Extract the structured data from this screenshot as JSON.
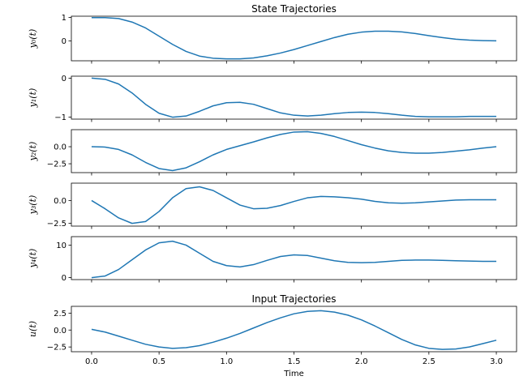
{
  "colors": {
    "line": "#1f77b4",
    "frame": "#000000",
    "background": "#ffffff"
  },
  "chart_data": [
    {
      "type": "line",
      "title": "State Trajectories",
      "ylabel": "y₀(t)",
      "xlim": [
        -0.15,
        3.15
      ],
      "ylim": [
        -0.85,
        1.05
      ],
      "yticks": [
        {
          "value": 1,
          "label": "1"
        },
        {
          "value": 0,
          "label": "0"
        }
      ],
      "xticks": [
        0,
        0.5,
        1,
        1.5,
        2,
        2.5,
        3
      ],
      "show_xticklabels": false,
      "series": [
        {
          "x": [
            0,
            0.1,
            0.2,
            0.3,
            0.4,
            0.5,
            0.6,
            0.7,
            0.8,
            0.9,
            1.0,
            1.1,
            1.2,
            1.3,
            1.4,
            1.5,
            1.6,
            1.7,
            1.8,
            1.9,
            2.0,
            2.1,
            2.2,
            2.3,
            2.4,
            2.5,
            2.6,
            2.7,
            2.8,
            2.9,
            3.0
          ],
          "y": [
            0.99,
            0.99,
            0.95,
            0.8,
            0.55,
            0.2,
            -0.15,
            -0.45,
            -0.65,
            -0.74,
            -0.77,
            -0.77,
            -0.73,
            -0.64,
            -0.52,
            -0.37,
            -0.2,
            -0.03,
            0.14,
            0.28,
            0.37,
            0.41,
            0.41,
            0.38,
            0.31,
            0.22,
            0.14,
            0.07,
            0.03,
            0.01,
            0.0
          ]
        }
      ]
    },
    {
      "type": "line",
      "ylabel": "y₁(t)",
      "xlim": [
        -0.15,
        3.15
      ],
      "ylim": [
        -1.05,
        0.05
      ],
      "yticks": [
        {
          "value": 0,
          "label": "0"
        },
        {
          "value": -1,
          "label": "−1"
        }
      ],
      "xticks": [
        0,
        0.5,
        1,
        1.5,
        2,
        2.5,
        3
      ],
      "show_xticklabels": false,
      "series": [
        {
          "x": [
            0,
            0.1,
            0.2,
            0.3,
            0.4,
            0.5,
            0.6,
            0.7,
            0.8,
            0.9,
            1.0,
            1.1,
            1.2,
            1.3,
            1.4,
            1.5,
            1.6,
            1.7,
            1.8,
            1.9,
            2.0,
            2.1,
            2.2,
            2.3,
            2.4,
            2.5,
            2.6,
            2.7,
            2.8,
            2.9,
            3.0
          ],
          "y": [
            0,
            -0.03,
            -0.15,
            -0.38,
            -0.67,
            -0.9,
            -1.0,
            -0.97,
            -0.85,
            -0.71,
            -0.63,
            -0.62,
            -0.67,
            -0.78,
            -0.89,
            -0.95,
            -0.97,
            -0.95,
            -0.91,
            -0.88,
            -0.87,
            -0.88,
            -0.91,
            -0.95,
            -0.98,
            -0.99,
            -0.99,
            -0.99,
            -0.98,
            -0.98,
            -0.98
          ]
        }
      ]
    },
    {
      "type": "line",
      "ylabel": "y₂(t)",
      "xlim": [
        -0.15,
        3.15
      ],
      "ylim": [
        -3.8,
        2.5
      ],
      "yticks": [
        {
          "value": 0,
          "label": "0.0"
        },
        {
          "value": -2.5,
          "label": "−2.5"
        }
      ],
      "xticks": [
        0,
        0.5,
        1,
        1.5,
        2,
        2.5,
        3
      ],
      "show_xticklabels": false,
      "series": [
        {
          "x": [
            0,
            0.1,
            0.2,
            0.3,
            0.4,
            0.5,
            0.6,
            0.7,
            0.8,
            0.9,
            1.0,
            1.1,
            1.2,
            1.3,
            1.4,
            1.5,
            1.6,
            1.7,
            1.8,
            1.9,
            2.0,
            2.1,
            2.2,
            2.3,
            2.4,
            2.5,
            2.6,
            2.7,
            2.8,
            2.9,
            3.0
          ],
          "y": [
            0,
            -0.05,
            -0.4,
            -1.2,
            -2.3,
            -3.2,
            -3.5,
            -3.1,
            -2.2,
            -1.2,
            -0.4,
            0.15,
            0.7,
            1.3,
            1.8,
            2.15,
            2.2,
            1.95,
            1.5,
            0.9,
            0.3,
            -0.2,
            -0.6,
            -0.85,
            -0.95,
            -0.95,
            -0.85,
            -0.65,
            -0.45,
            -0.2,
            0.0
          ]
        }
      ]
    },
    {
      "type": "line",
      "ylabel": "y₃(t)",
      "xlim": [
        -0.15,
        3.15
      ],
      "ylim": [
        -2.8,
        1.9
      ],
      "yticks": [
        {
          "value": 0,
          "label": "0.0"
        },
        {
          "value": -2.5,
          "label": "−2.5"
        }
      ],
      "xticks": [
        0,
        0.5,
        1,
        1.5,
        2,
        2.5,
        3
      ],
      "show_xticklabels": false,
      "series": [
        {
          "x": [
            0,
            0.1,
            0.2,
            0.3,
            0.4,
            0.5,
            0.6,
            0.7,
            0.8,
            0.9,
            1.0,
            1.1,
            1.2,
            1.3,
            1.4,
            1.5,
            1.6,
            1.7,
            1.8,
            1.9,
            2.0,
            2.1,
            2.2,
            2.3,
            2.4,
            2.5,
            2.6,
            2.7,
            2.8,
            2.9,
            3.0
          ],
          "y": [
            0,
            -0.9,
            -1.9,
            -2.5,
            -2.3,
            -1.2,
            0.3,
            1.3,
            1.5,
            1.1,
            0.3,
            -0.5,
            -0.9,
            -0.85,
            -0.55,
            -0.1,
            0.3,
            0.45,
            0.4,
            0.3,
            0.15,
            -0.1,
            -0.25,
            -0.3,
            -0.25,
            -0.15,
            -0.05,
            0.05,
            0.08,
            0.08,
            0.08
          ]
        }
      ]
    },
    {
      "type": "line",
      "ylabel": "y₄(t)",
      "xlim": [
        -0.15,
        3.15
      ],
      "ylim": [
        -0.6,
        12.6
      ],
      "yticks": [
        {
          "value": 10,
          "label": "10"
        },
        {
          "value": 0,
          "label": "0"
        }
      ],
      "xticks": [
        0,
        0.5,
        1,
        1.5,
        2,
        2.5,
        3
      ],
      "show_xticklabels": false,
      "series": [
        {
          "x": [
            0,
            0.1,
            0.2,
            0.3,
            0.4,
            0.5,
            0.6,
            0.7,
            0.8,
            0.9,
            1.0,
            1.1,
            1.2,
            1.3,
            1.4,
            1.5,
            1.6,
            1.7,
            1.8,
            1.9,
            2.0,
            2.1,
            2.2,
            2.3,
            2.4,
            2.5,
            2.6,
            2.7,
            2.8,
            2.9,
            3.0
          ],
          "y": [
            0,
            0.5,
            2.5,
            5.5,
            8.5,
            10.7,
            11.2,
            10.0,
            7.5,
            5.0,
            3.7,
            3.3,
            4.0,
            5.3,
            6.5,
            7.0,
            6.8,
            6.0,
            5.2,
            4.7,
            4.6,
            4.7,
            5.0,
            5.3,
            5.4,
            5.4,
            5.3,
            5.2,
            5.1,
            5.0,
            5.0
          ]
        }
      ]
    },
    {
      "type": "line",
      "title": "Input Trajectories",
      "ylabel": "u(t)",
      "xlabel": "Time",
      "xlim": [
        -0.15,
        3.15
      ],
      "ylim": [
        -3.2,
        3.5
      ],
      "yticks": [
        {
          "value": 2.5,
          "label": "2.5"
        },
        {
          "value": 0,
          "label": "0.0"
        },
        {
          "value": -2.5,
          "label": "−2.5"
        }
      ],
      "xticks": [
        0,
        0.5,
        1,
        1.5,
        2,
        2.5,
        3
      ],
      "xticklabels": [
        "0.0",
        "0.5",
        "1.0",
        "1.5",
        "2.0",
        "2.5",
        "3.0"
      ],
      "show_xticklabels": true,
      "series": [
        {
          "x": [
            0,
            0.1,
            0.2,
            0.3,
            0.4,
            0.5,
            0.6,
            0.7,
            0.8,
            0.9,
            1.0,
            1.1,
            1.2,
            1.3,
            1.4,
            1.5,
            1.6,
            1.7,
            1.8,
            1.9,
            2.0,
            2.1,
            2.2,
            2.3,
            2.4,
            2.5,
            2.6,
            2.7,
            2.8,
            2.9,
            3.0
          ],
          "y": [
            0.1,
            -0.3,
            -0.9,
            -1.5,
            -2.1,
            -2.5,
            -2.7,
            -2.6,
            -2.3,
            -1.8,
            -1.2,
            -0.5,
            0.3,
            1.1,
            1.8,
            2.4,
            2.75,
            2.85,
            2.65,
            2.2,
            1.5,
            0.6,
            -0.4,
            -1.4,
            -2.2,
            -2.7,
            -2.85,
            -2.8,
            -2.5,
            -2.0,
            -1.5
          ]
        }
      ]
    }
  ]
}
